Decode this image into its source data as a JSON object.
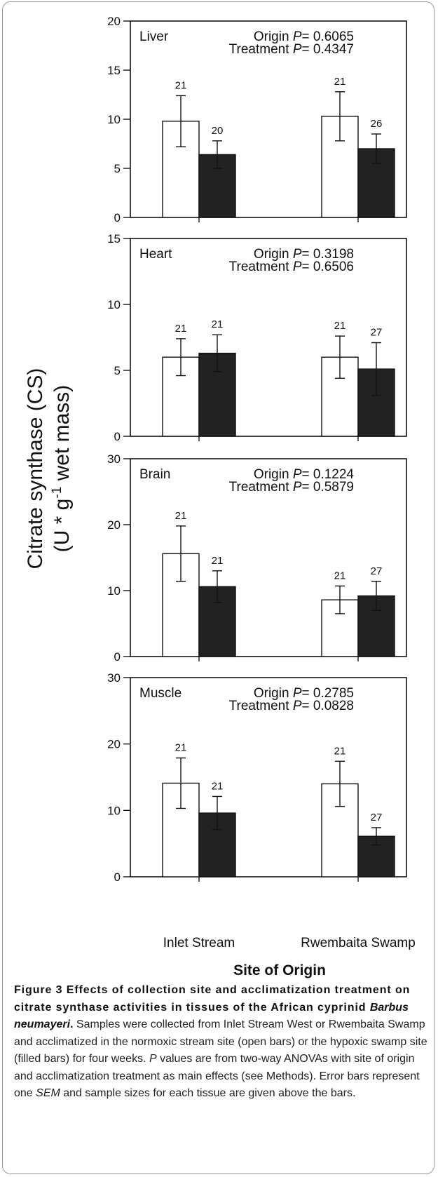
{
  "chart_data": {
    "type": "bar",
    "ylabel_line1": "Citrate synthase (CS)",
    "ylabel_line2_pre": "(U * g",
    "ylabel_line2_sup": "-1",
    "ylabel_line2_post": " wet mass)",
    "xlabel": "Site of Origin",
    "categories": [
      "Inlet Stream",
      "Rwembaita Swamp"
    ],
    "panels": [
      {
        "name": "Liver",
        "ylim": [
          0,
          20
        ],
        "yticks": [
          0,
          5,
          10,
          15,
          20
        ],
        "origin_label": "Origin",
        "origin_p": "P",
        "origin_val": "= 0.6065",
        "treat_label": "Treatment",
        "treat_p": "P",
        "treat_val": "= 0.4347",
        "series": [
          {
            "fill": "#ffffff",
            "values": [
              9.8,
              10.3
            ],
            "errors": [
              2.6,
              2.5
            ],
            "n": [
              "21",
              "21"
            ]
          },
          {
            "fill": "#222222",
            "values": [
              6.4,
              7.0
            ],
            "errors": [
              1.4,
              1.5
            ],
            "n": [
              "20",
              "26"
            ]
          }
        ]
      },
      {
        "name": "Heart",
        "ylim": [
          0,
          15
        ],
        "yticks": [
          0,
          5,
          10,
          15
        ],
        "origin_label": "Origin",
        "origin_p": "P",
        "origin_val": "= 0.3198",
        "treat_label": "Treatment",
        "treat_p": "P",
        "treat_val": "= 0.6506",
        "series": [
          {
            "fill": "#ffffff",
            "values": [
              6.0,
              6.0
            ],
            "errors": [
              1.4,
              1.6
            ],
            "n": [
              "21",
              "21"
            ]
          },
          {
            "fill": "#222222",
            "values": [
              6.3,
              5.1
            ],
            "errors": [
              1.4,
              2.0
            ],
            "n": [
              "21",
              "27"
            ]
          }
        ]
      },
      {
        "name": "Brain",
        "ylim": [
          0,
          30
        ],
        "yticks": [
          0,
          10,
          20,
          30
        ],
        "origin_label": "Origin",
        "origin_p": "P",
        "origin_val": "= 0.1224",
        "treat_label": "Treatment",
        "treat_p": "P",
        "treat_val": "= 0.5879",
        "series": [
          {
            "fill": "#ffffff",
            "values": [
              15.6,
              8.6
            ],
            "errors": [
              4.2,
              2.1
            ],
            "n": [
              "21",
              "21"
            ]
          },
          {
            "fill": "#222222",
            "values": [
              10.6,
              9.2
            ],
            "errors": [
              2.4,
              2.2
            ],
            "n": [
              "21",
              "27"
            ]
          }
        ]
      },
      {
        "name": "Muscle",
        "ylim": [
          0,
          30
        ],
        "yticks": [
          0,
          10,
          20,
          30
        ],
        "origin_label": "Origin",
        "origin_p": "P",
        "origin_val": "= 0.2785",
        "treat_label": "Treatment",
        "treat_p": "P",
        "treat_val": "= 0.0828",
        "series": [
          {
            "fill": "#ffffff",
            "values": [
              14.1,
              14.0
            ],
            "errors": [
              3.8,
              3.4
            ],
            "n": [
              "21",
              "21"
            ]
          },
          {
            "fill": "#222222",
            "values": [
              9.6,
              6.1
            ],
            "errors": [
              2.5,
              1.3
            ],
            "n": [
              "21",
              "27"
            ]
          }
        ]
      }
    ]
  },
  "caption": {
    "head_a": "Figure 3 Effects of collection site and acclimatization treatment on citrate synthase activities in tissues of the African cyprinid ",
    "head_species": "Barbus neumayeri",
    "head_end": ".",
    "body_a": " Samples were collected from Inlet Stream West or Rwembaita Swamp and acclimatized in the normoxic stream site (open bars) or the hypoxic swamp site (filled bars) for four weeks. ",
    "body_p": "P",
    "body_b": " values are from two-way ANOVAs with site of origin and acclimatization treatment as main effects (see Methods). Error bars represent one ",
    "body_sem": "SEM",
    "body_c": " and sample sizes for each tissue are given above the bars."
  }
}
